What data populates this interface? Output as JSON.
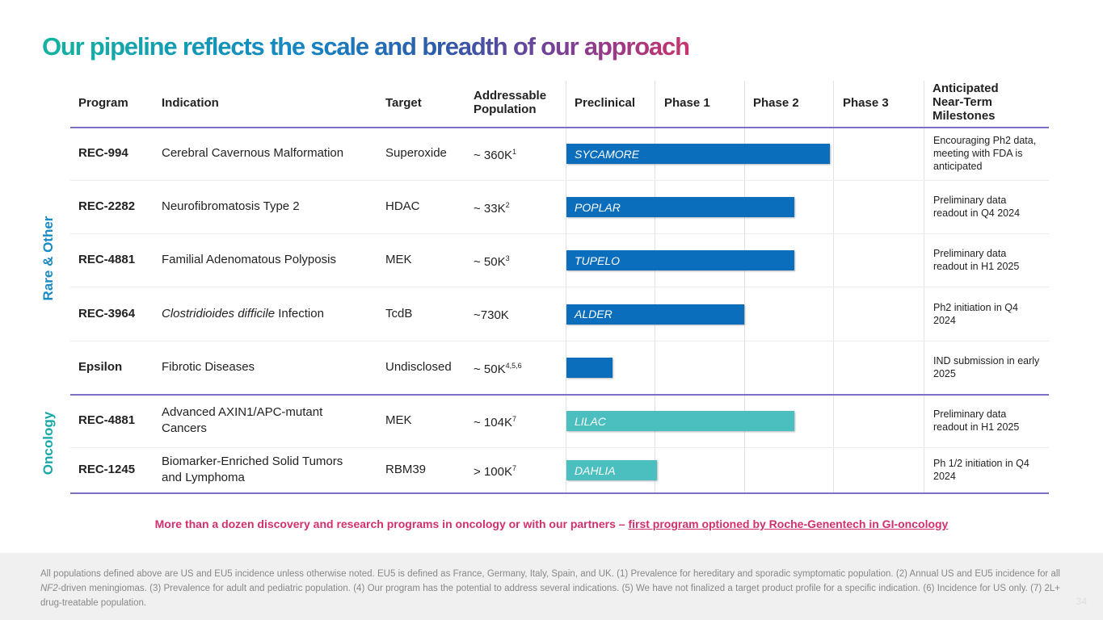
{
  "title": "Our pipeline reflects the scale and breadth of our approach",
  "headers": {
    "program": "Program",
    "indication": "Indication",
    "target": "Target",
    "population_1": "Addressable",
    "population_2": "Population",
    "preclinical": "Preclinical",
    "phase1": "Phase 1",
    "phase2": "Phase 2",
    "phase3": "Phase 3",
    "milestones_1": "Anticipated",
    "milestones_2": "Near-Term",
    "milestones_3": "Milestones"
  },
  "groups": {
    "rare": "Rare & Other",
    "oncology": "Oncology"
  },
  "colors": {
    "rare_bar": "#0a6ebd",
    "oncology_bar": "#4bbfc0",
    "rare_label": "#1a8ac4",
    "oncology_label": "#17a9a9",
    "note": "#d0306e"
  },
  "rows": [
    {
      "program": "REC-994",
      "indication": "Cerebral Cavernous Malformation",
      "indication_italic": "",
      "target": "Superoxide",
      "population": "~ 360K",
      "sup": "1",
      "bar_label": "SYCAMORE",
      "progress_phases": 2.96,
      "milestone": "Encouraging Ph2 data, meeting with FDA is anticipated",
      "group": "rare"
    },
    {
      "program": "REC-2282",
      "indication": "Neurofibromatosis Type 2",
      "indication_italic": "",
      "target": "HDAC",
      "population": "~ 33K",
      "sup": "2",
      "bar_label": "POPLAR",
      "progress_phases": 2.56,
      "milestone": "Preliminary data readout in Q4 2024",
      "group": "rare"
    },
    {
      "program": "REC-4881",
      "indication": "Familial Adenomatous Polyposis",
      "indication_italic": "",
      "target": "MEK",
      "population": "~ 50K",
      "sup": "3",
      "bar_label": "TUPELO",
      "progress_phases": 2.56,
      "milestone": "Preliminary data readout in H1 2025",
      "group": "rare"
    },
    {
      "program": "REC-3964",
      "indication_italic": "Clostridioides difficile",
      "indication": " Infection",
      "target": "TcdB",
      "population": "~730K",
      "sup": "",
      "bar_label": "ALDER",
      "progress_phases": 2.0,
      "milestone": "Ph2 initiation in Q4 2024",
      "group": "rare"
    },
    {
      "program": "Epsilon",
      "indication": "Fibrotic Diseases",
      "indication_italic": "",
      "target": "Undisclosed",
      "population": "~ 50K",
      "sup": "4,5,6",
      "bar_label": "",
      "progress_phases": 0.52,
      "milestone": "IND submission in early 2025",
      "group": "rare"
    },
    {
      "program": "REC-4881",
      "indication": "Advanced AXIN1/APC-mutant Cancers",
      "indication_italic": "",
      "target": "MEK",
      "population": "~ 104K",
      "sup": "7",
      "bar_label": "LILAC",
      "progress_phases": 2.56,
      "milestone": "Preliminary data readout in H1 2025",
      "group": "oncology"
    },
    {
      "program": "REC-1245",
      "indication": "Biomarker-Enriched Solid Tumors and Lymphoma",
      "indication_italic": "",
      "target": "RBM39",
      "population": "> 100K",
      "sup": "7",
      "bar_label": "DAHLIA",
      "progress_phases": 1.02,
      "milestone": "Ph 1/2 initiation in Q4 2024",
      "group": "oncology"
    }
  ],
  "note": {
    "text": "More than a dozen discovery and research programs in oncology or with our partners – ",
    "link": "first program optioned by Roche-Genentech in GI-oncology"
  },
  "footer": {
    "part1": "All populations defined above are US and EU5 incidence unless otherwise noted. EU5 is defined as France, Germany, Italy, Spain, and UK. (1) Prevalence for hereditary and sporadic symptomatic population. (2) Annual US and EU5 incidence for all ",
    "italic": "NF2",
    "part2": "-driven meningiomas. (3) Prevalence for adult and pediatric population. (4) Our program has the potential to address several indications. (5) We have not finalized a target product profile for a specific indication. (6) Incidence for US only. (7) 2L+ drug-treatable population."
  },
  "page_number": "34"
}
